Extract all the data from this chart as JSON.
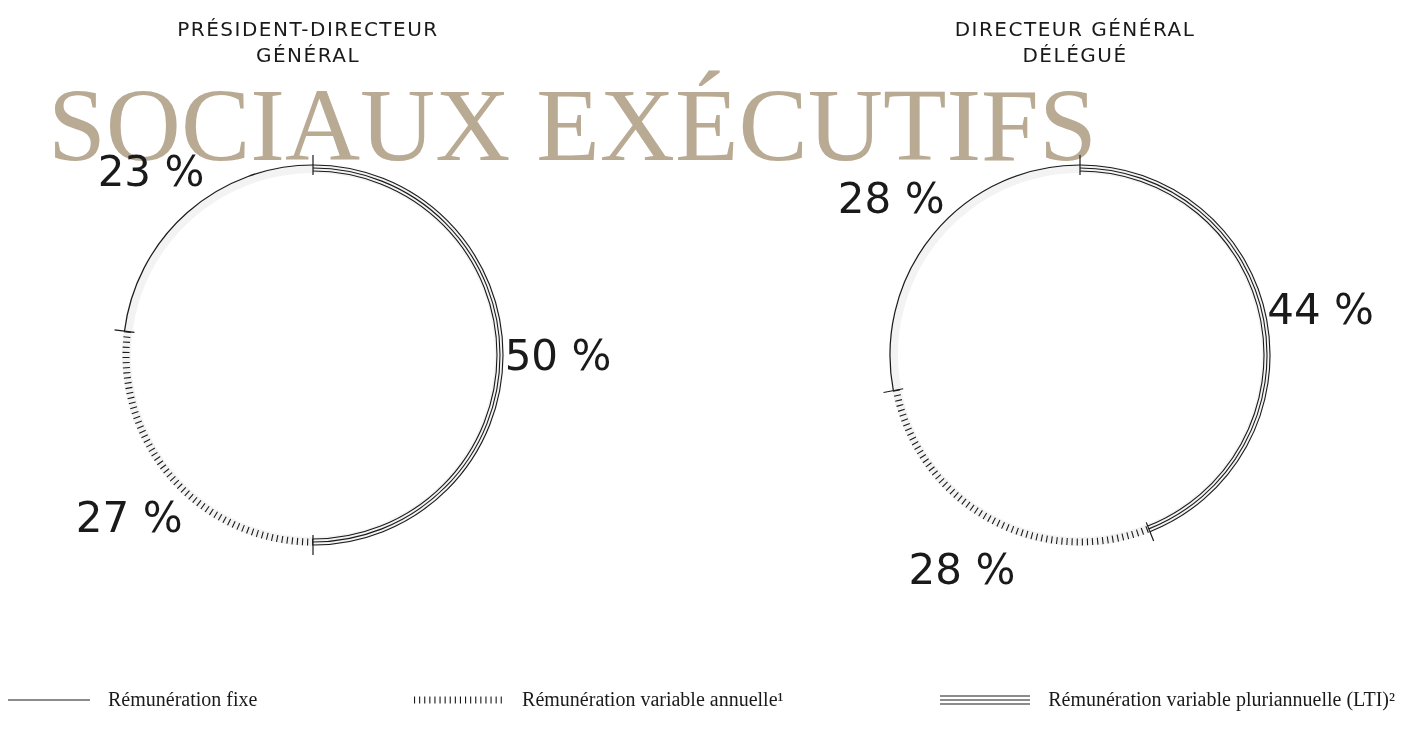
{
  "chart_data": [
    {
      "type": "donut",
      "title": "PRÉSIDENT-DIRECTEUR GÉNÉRAL",
      "categories": [
        "Rémunération fixe",
        "Rémunération variable annuelle¹",
        "Rémunération variable pluriannuelle (LTI)²"
      ],
      "values": [
        23,
        27,
        50
      ],
      "colors": [
        "#1a1a1a",
        "#1a1a1a",
        "#1a1a1a"
      ],
      "line_style": [
        "solid",
        "dotted",
        "double"
      ],
      "value_labels": [
        "23 %",
        "27 %",
        "50 %"
      ],
      "legend": "bottom",
      "annotations": [
        "SOCIAUX EXÉCUTIFS"
      ]
    },
    {
      "type": "donut",
      "title": "DIRECTEUR GÉNÉRAL DÉLÉGUÉ",
      "categories": [
        null,
        null,
        null
      ],
      "values": [
        28,
        28,
        44
      ],
      "colors": [
        "#1a1a1a",
        "#1a1a1a",
        "#1a1a1a"
      ],
      "line_style": [
        "solid",
        "dotted",
        "double"
      ],
      "value_labels": [
        "28 %",
        "28 %",
        "44 %"
      ]
    }
  ]
}
